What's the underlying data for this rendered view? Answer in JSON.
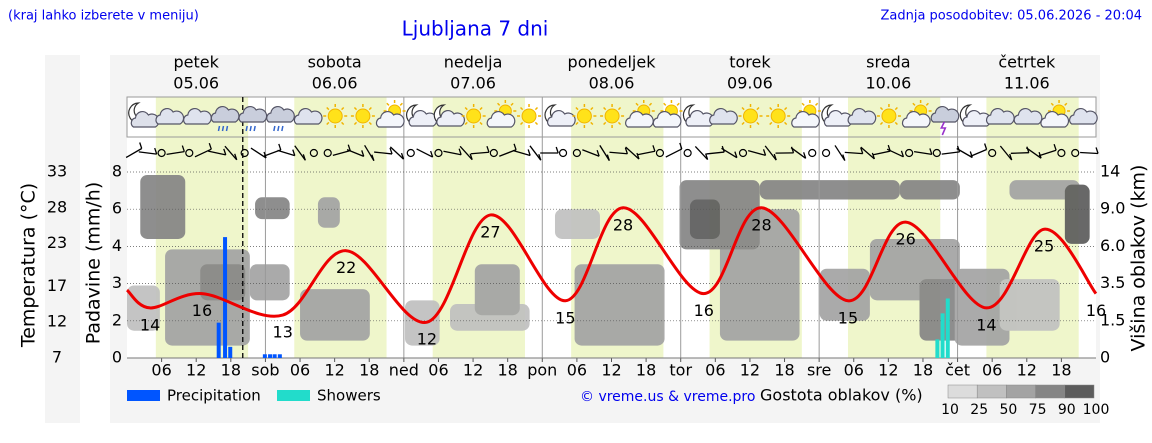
{
  "header": {
    "hint": "(kraj lahko izberete v meniju)",
    "title": "Ljubljana 7 dni",
    "updated": "Zadnja posodobitev: 05.06.2026 - 20:04"
  },
  "chart_data": {
    "type": "meteogram",
    "days": [
      {
        "name": "petek",
        "date": "05.06",
        "color": "#000000"
      },
      {
        "name": "sobota",
        "date": "06.06",
        "color": "#ee0000"
      },
      {
        "name": "nedelja",
        "date": "07.06",
        "color": "#ee0000"
      },
      {
        "name": "ponedeljek",
        "date": "08.06",
        "color": "#000000"
      },
      {
        "name": "torek",
        "date": "09.06",
        "color": "#000000"
      },
      {
        "name": "sreda",
        "date": "10.06",
        "color": "#000000"
      },
      {
        "name": "četrtek",
        "date": "11.06",
        "color": "#000000"
      }
    ],
    "xlim": [
      0,
      168
    ],
    "xticks": [
      {
        "value": 6,
        "label": "06"
      },
      {
        "value": 12,
        "label": "12"
      },
      {
        "value": 18,
        "label": "18"
      },
      {
        "value": 24,
        "label": "sob"
      },
      {
        "value": 30,
        "label": "06"
      },
      {
        "value": 36,
        "label": "12"
      },
      {
        "value": 42,
        "label": "18"
      },
      {
        "value": 48,
        "label": "ned"
      },
      {
        "value": 54,
        "label": "06"
      },
      {
        "value": 60,
        "label": "12"
      },
      {
        "value": 66,
        "label": "18"
      },
      {
        "value": 72,
        "label": "pon"
      },
      {
        "value": 78,
        "label": "06"
      },
      {
        "value": 84,
        "label": "12"
      },
      {
        "value": 90,
        "label": "18"
      },
      {
        "value": 96,
        "label": "tor"
      },
      {
        "value": 102,
        "label": "06"
      },
      {
        "value": 108,
        "label": "12"
      },
      {
        "value": 114,
        "label": "18"
      },
      {
        "value": 120,
        "label": "sre"
      },
      {
        "value": 126,
        "label": "06"
      },
      {
        "value": 132,
        "label": "12"
      },
      {
        "value": 138,
        "label": "18"
      },
      {
        "value": 144,
        "label": "čet"
      },
      {
        "value": 150,
        "label": "06"
      },
      {
        "value": 156,
        "label": "12"
      },
      {
        "value": 162,
        "label": "18"
      }
    ],
    "now": 20.07,
    "ylabel": "Padavine (mm/h)",
    "ylim": [
      0,
      8
    ],
    "yticks": [
      0,
      2,
      3,
      4,
      6,
      8
    ],
    "grid": true,
    "y2label": "Temperatura (°C)",
    "y2lim": [
      7,
      33
    ],
    "y2ticks": [
      7,
      12,
      17,
      23,
      28,
      33
    ],
    "y2color": "#ee0000",
    "y3label": "Višina oblakov (km)",
    "y3lim": [
      0,
      14
    ],
    "y3ticks": [
      0,
      1.5,
      3.5,
      {
        "value": 6,
        "label": "6.0"
      },
      {
        "value": 9,
        "label": "9.0"
      },
      14
    ],
    "series": [
      {
        "name": "Precipitation",
        "color": "#0055ff",
        "x": [
          15.9,
          17,
          17.9,
          23.9,
          24.8,
          25.6,
          26.5
        ],
        "values": [
          1.9,
          4.5,
          0.6,
          0.2,
          0.2,
          0.2,
          0.2
        ]
      },
      {
        "name": "Showers",
        "color": "#22dccb",
        "x": [
          140.5,
          141.4,
          142.3
        ],
        "values": [
          1.0,
          2.2,
          2.6
        ]
      }
    ],
    "temperature": {
      "axis": "y2",
      "color": "#ee0000",
      "x": [
        0,
        4,
        13,
        27,
        38,
        52,
        63,
        76,
        86,
        100,
        110,
        125,
        135,
        149,
        159,
        168
      ],
      "values": [
        16.5,
        14,
        16,
        13,
        22,
        12,
        27,
        15,
        28,
        16,
        28,
        15,
        26,
        14,
        25,
        16
      ],
      "value_labels": [
        null,
        "14",
        "16",
        "13",
        "22",
        "12",
        "27",
        "15",
        "28",
        "16",
        "28",
        "15",
        "26",
        "14",
        "25",
        "16"
      ]
    },
    "clouds": {
      "title": "Gostota oblakov (%)",
      "levels": [
        10,
        25,
        50,
        75,
        90,
        100
      ],
      "colors": [
        "#dcdcdc",
        "#c0c0c0",
        "#a3a3a3",
        "#858585",
        "#5c5c5c"
      ],
      "cells": [
        [
          0,
          5.7,
          1.1,
          3.4,
          25
        ],
        [
          6.6,
          21.3,
          0.5,
          5.8,
          50
        ],
        [
          2.3,
          10.1,
          6.6,
          13.6,
          75
        ],
        [
          12.7,
          20.5,
          2.6,
          4.8,
          75
        ],
        [
          21.3,
          28.2,
          2.6,
          4.8,
          50
        ],
        [
          22.2,
          28.2,
          8.2,
          10.6,
          75
        ],
        [
          33.1,
          36.9,
          7.5,
          10.6,
          50
        ],
        [
          30,
          42.1,
          0.7,
          3.2,
          50
        ],
        [
          48.2,
          54.2,
          0.5,
          2.6,
          25
        ],
        [
          56,
          69.8,
          1.1,
          2.4,
          25
        ],
        [
          60.3,
          68.1,
          1.8,
          4.8,
          50
        ],
        [
          74.2,
          82,
          6.6,
          9,
          25
        ],
        [
          77.6,
          93.2,
          0.5,
          4.8,
          50
        ],
        [
          102.8,
          116.6,
          0.7,
          9,
          50
        ],
        [
          95.8,
          109.7,
          5.8,
          12.9,
          75
        ],
        [
          97.6,
          102.8,
          6.6,
          10.3,
          90
        ],
        [
          109.7,
          134,
          10.3,
          12.9,
          75
        ],
        [
          120.1,
          128.8,
          1.5,
          4.5,
          50
        ],
        [
          128.8,
          144.4,
          2.6,
          6.6,
          50
        ],
        [
          134,
          144.4,
          10.3,
          12.9,
          75
        ],
        [
          137.4,
          149.6,
          0.7,
          3.8,
          75
        ],
        [
          143.5,
          153,
          0.5,
          4.5,
          50
        ],
        [
          151.3,
          161.7,
          1.1,
          3.8,
          25
        ],
        [
          153,
          165.2,
          10.3,
          12.9,
          50
        ],
        [
          162.6,
          166.9,
          6.2,
          12.3,
          90
        ]
      ]
    },
    "credit": "© vreme.us & vreme.pro"
  }
}
